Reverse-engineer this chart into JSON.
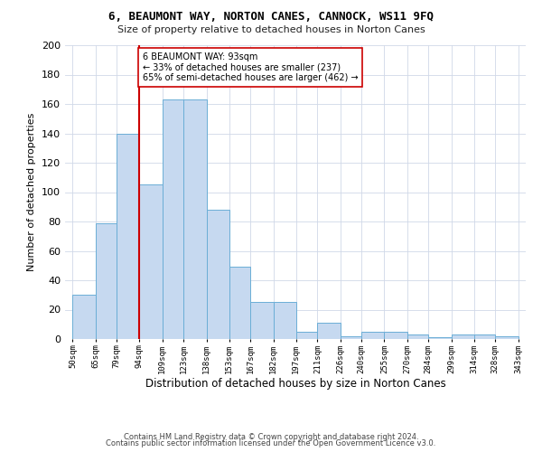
{
  "title1": "6, BEAUMONT WAY, NORTON CANES, CANNOCK, WS11 9FQ",
  "title2": "Size of property relative to detached houses in Norton Canes",
  "xlabel": "Distribution of detached houses by size in Norton Canes",
  "ylabel": "Number of detached properties",
  "footer1": "Contains HM Land Registry data © Crown copyright and database right 2024.",
  "footer2": "Contains public sector information licensed under the Open Government Licence v3.0.",
  "annotation_title": "6 BEAUMONT WAY: 93sqm",
  "annotation_line1": "← 33% of detached houses are smaller (237)",
  "annotation_line2": "65% of semi-detached houses are larger (462) →",
  "bar_edges": [
    50,
    65,
    79,
    94,
    109,
    123,
    138,
    153,
    167,
    182,
    197,
    211,
    226,
    240,
    255,
    270,
    284,
    299,
    314,
    328,
    343
  ],
  "bar_heights": [
    30,
    79,
    140,
    105,
    163,
    163,
    88,
    49,
    25,
    25,
    5,
    11,
    2,
    5,
    5,
    3,
    1,
    3,
    3,
    2
  ],
  "bar_color": "#c6d9f0",
  "bar_edge_color": "#6baed6",
  "vline_color": "#cc0000",
  "vline_x": 94,
  "annotation_box_color": "#ffffff",
  "annotation_box_edge": "#cc0000",
  "grid_color": "#d0d8e8",
  "background_color": "#ffffff",
  "ylim": [
    0,
    200
  ],
  "tick_labels": [
    "50sqm",
    "65sqm",
    "79sqm",
    "94sqm",
    "109sqm",
    "123sqm",
    "138sqm",
    "153sqm",
    "167sqm",
    "182sqm",
    "197sqm",
    "211sqm",
    "226sqm",
    "240sqm",
    "255sqm",
    "270sqm",
    "284sqm",
    "299sqm",
    "314sqm",
    "328sqm",
    "343sqm"
  ]
}
